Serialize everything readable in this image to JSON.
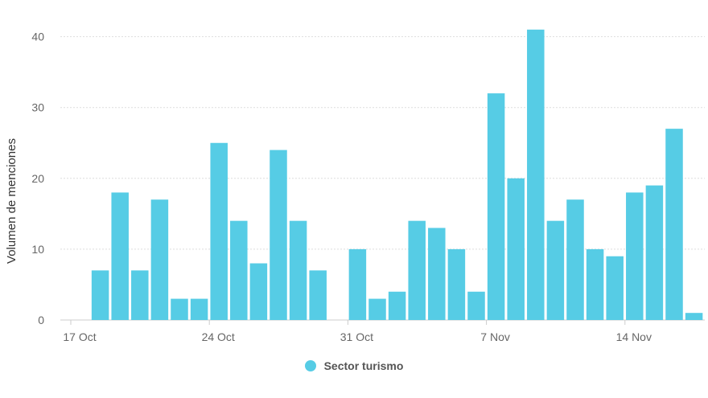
{
  "chart_data": {
    "type": "bar",
    "title": "",
    "xlabel": "",
    "ylabel": "Volumen de menciones",
    "ylim": [
      0,
      42
    ],
    "yticks": [
      0,
      10,
      20,
      30,
      40
    ],
    "grid": true,
    "legend_position": "bottom",
    "start_date": "2021-10-17",
    "categories": [
      "17 Oct",
      "18 Oct",
      "19 Oct",
      "20 Oct",
      "21 Oct",
      "22 Oct",
      "23 Oct",
      "24 Oct",
      "25 Oct",
      "26 Oct",
      "27 Oct",
      "28 Oct",
      "29 Oct",
      "30 Oct",
      "31 Oct",
      "1 Nov",
      "2 Nov",
      "3 Nov",
      "4 Nov",
      "5 Nov",
      "6 Nov",
      "7 Nov",
      "8 Nov",
      "9 Nov",
      "10 Nov",
      "11 Nov",
      "12 Nov",
      "13 Nov",
      "14 Nov",
      "15 Nov",
      "16 Nov",
      "17 Nov",
      "18 Nov"
    ],
    "x_tick_labels": [
      {
        "label": "17 Oct",
        "index": 0
      },
      {
        "label": "24 Oct",
        "index": 7
      },
      {
        "label": "31 Oct",
        "index": 14
      },
      {
        "label": "7 Nov",
        "index": 21
      },
      {
        "label": "14 Nov",
        "index": 28
      }
    ],
    "series": [
      {
        "name": "Sector turismo",
        "color": "#56CCE5",
        "values": [
          0,
          7,
          18,
          7,
          17,
          3,
          3,
          25,
          14,
          8,
          24,
          14,
          7,
          0,
          10,
          3,
          4,
          14,
          13,
          10,
          4,
          32,
          20,
          41,
          14,
          17,
          10,
          9,
          18,
          19,
          27,
          1,
          0
        ]
      }
    ]
  }
}
